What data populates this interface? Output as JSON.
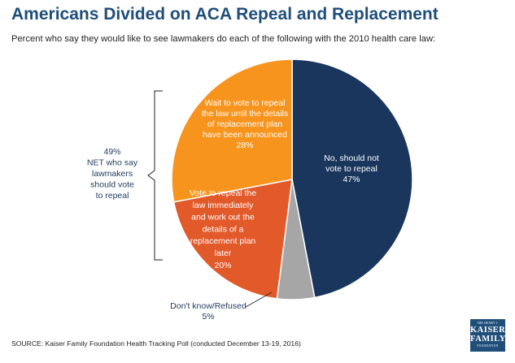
{
  "title": "Americans Divided on ACA Repeal and Replacement",
  "subtitle": "Percent who say they would like to see lawmakers do each of the following with the 2010 health care law:",
  "source": "SOURCE: Kaiser Family Foundation Health Tracking Poll (conducted December 13-19, 2016)",
  "logo": {
    "line1": "THE HENRY J.",
    "line2": "KAISER",
    "line3": "FAMILY",
    "line4": "FOUNDATION"
  },
  "net_label": [
    "49%",
    "NET who say",
    "lawmakers",
    "should vote",
    "to repeal"
  ],
  "chart_data": {
    "type": "pie",
    "slices": [
      {
        "key": "no",
        "label_lines": [
          "No, should not",
          "vote to repeal",
          "47%"
        ],
        "value": 47,
        "color": "#1a365d"
      },
      {
        "key": "dk",
        "label_lines": [
          "Don't know/Refused",
          "5%"
        ],
        "value": 5,
        "color": "#a6a6a6"
      },
      {
        "key": "immediately",
        "label_lines": [
          "Vote to repeal the",
          "law immediately",
          "and work out the",
          "details of a",
          "replacement plan",
          "later",
          "20%"
        ],
        "value": 20,
        "color": "#e2592a"
      },
      {
        "key": "wait",
        "label_lines": [
          "Wait to vote to repeal",
          "the law until the details",
          "of replacement plan",
          "have been announced",
          "28%"
        ],
        "value": 28,
        "color": "#f7941d"
      }
    ]
  }
}
